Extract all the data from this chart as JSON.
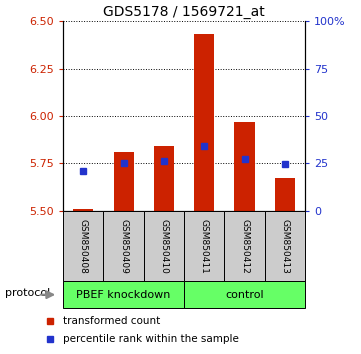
{
  "title": "GDS5178 / 1569721_at",
  "samples": [
    "GSM850408",
    "GSM850409",
    "GSM850410",
    "GSM850411",
    "GSM850412",
    "GSM850413"
  ],
  "bar_base": 5.5,
  "bar_tops": [
    5.51,
    5.81,
    5.84,
    6.43,
    5.97,
    5.67
  ],
  "percentile_values": [
    5.71,
    5.75,
    5.76,
    5.84,
    5.775,
    5.745
  ],
  "ylim": [
    5.5,
    6.5
  ],
  "y_ticks_left": [
    5.5,
    5.75,
    6.0,
    6.25,
    6.5
  ],
  "y_ticks_right_vals": [
    5.5,
    5.75,
    6.0,
    6.25,
    6.5
  ],
  "y_ticks_right_labels": [
    "0",
    "25",
    "50",
    "75",
    "100%"
  ],
  "bar_color": "#cc2200",
  "blue_color": "#2233cc",
  "group1_label": "PBEF knockdown",
  "group2_label": "control",
  "group1_indices": [
    0,
    1,
    2
  ],
  "group2_indices": [
    3,
    4,
    5
  ],
  "group_color": "#66ff66",
  "sample_bg_color": "#cccccc",
  "protocol_label": "protocol",
  "legend_red": "transformed count",
  "legend_blue": "percentile rank within the sample",
  "bar_width": 0.5,
  "title_fontsize": 10,
  "tick_fontsize": 8,
  "sample_fontsize": 6.5,
  "group_fontsize": 8,
  "legend_fontsize": 7.5
}
